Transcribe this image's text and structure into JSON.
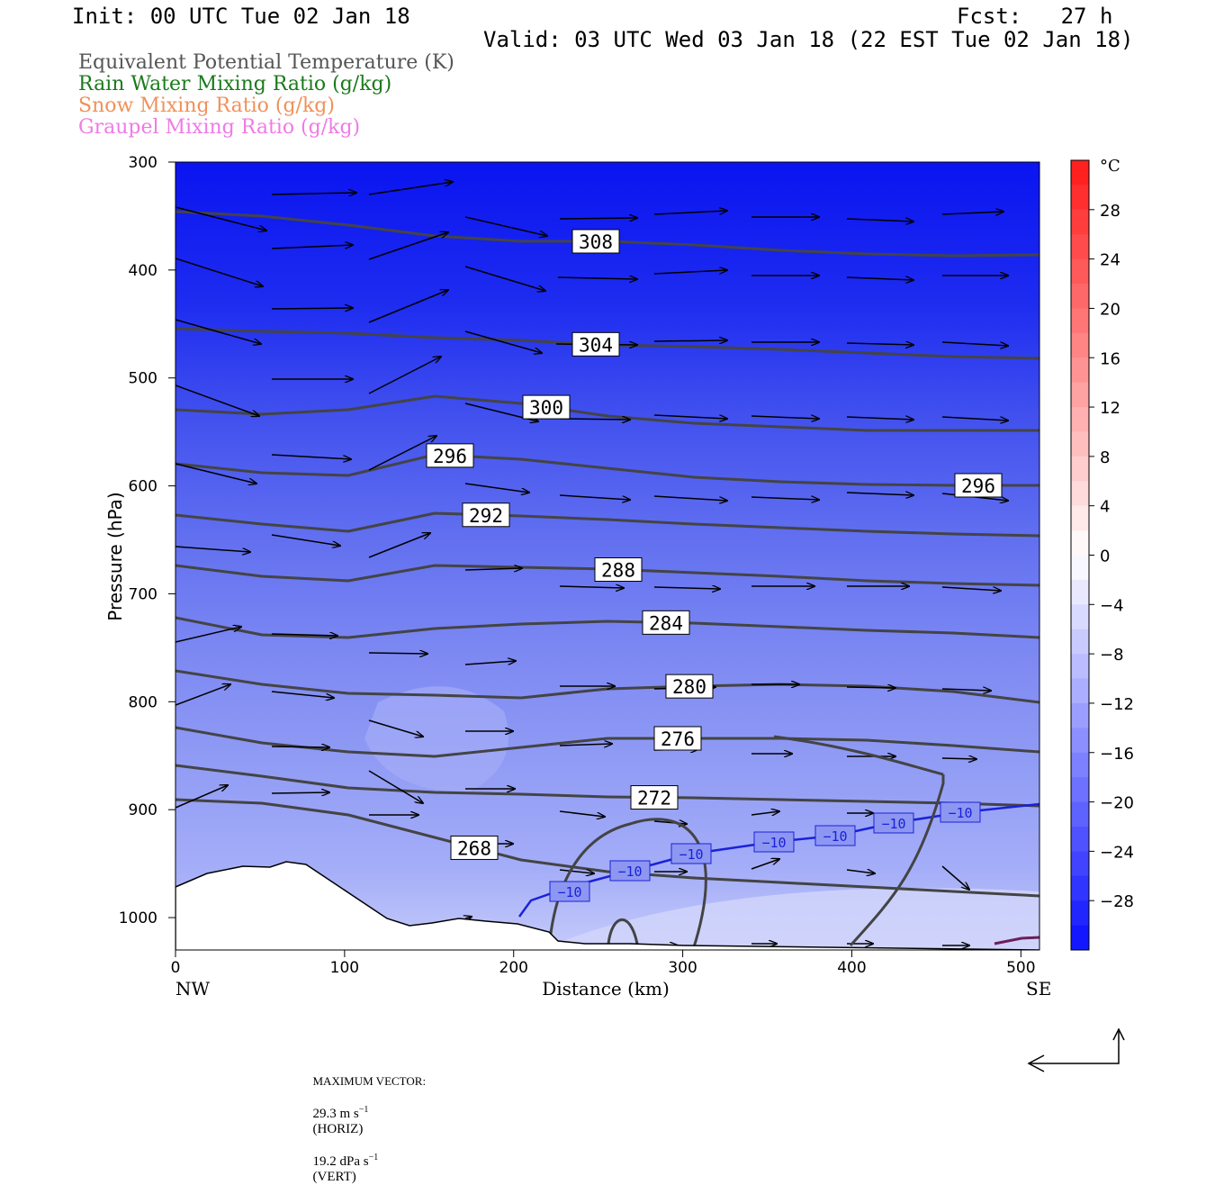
{
  "header": {
    "init": "Init: 00 UTC Tue 02 Jan 18",
    "fcst": "Fcst:   27 h",
    "valid": "Valid: 03 UTC Wed 03 Jan 18 (22 EST Tue 02 Jan 18)"
  },
  "legend": [
    {
      "label": "Equivalent Potential Temperature (K)",
      "color": "#555555"
    },
    {
      "label": "Rain Water Mixing Ratio (g/kg)",
      "color": "#1a7a1a"
    },
    {
      "label": "Snow Mixing Ratio (g/kg)",
      "color": "#f0915a"
    },
    {
      "label": "Graupel Mixing Ratio (g/kg)",
      "color": "#f07ae6"
    }
  ],
  "chart_data": {
    "type": "cross-section",
    "ylabel": "Pressure (hPa)",
    "xlabel": "Distance (km)",
    "x_left_label": "NW",
    "x_right_label": "SE",
    "xlim": [
      0,
      511
    ],
    "ylim": [
      1030,
      300
    ],
    "yticks": [
      300,
      400,
      500,
      600,
      700,
      800,
      900,
      1000
    ],
    "xticks": [
      0,
      100,
      200,
      300,
      400,
      500
    ],
    "colorbar": {
      "unit": "°C",
      "ticks": [
        28,
        24,
        20,
        16,
        12,
        8,
        4,
        0,
        -4,
        -8,
        -12,
        -16,
        -20,
        -24,
        -28
      ],
      "range": [
        -32,
        32
      ]
    },
    "theta_e_contours": [
      {
        "value": 308,
        "label": "308"
      },
      {
        "value": 304,
        "label": "304"
      },
      {
        "value": 300,
        "label": "300"
      },
      {
        "value": 296,
        "label": "296"
      },
      {
        "value": 292,
        "label": "292"
      },
      {
        "value": 288,
        "label": "288"
      },
      {
        "value": 284,
        "label": "284"
      },
      {
        "value": 280,
        "label": "280"
      },
      {
        "value": 276,
        "label": "276"
      },
      {
        "value": 272,
        "label": "272"
      },
      {
        "value": 268,
        "label": "268"
      }
    ],
    "temperature_contour": {
      "value": -10,
      "label": "−10"
    },
    "max_vector": {
      "label": "MAXIMUM VECTOR:",
      "horiz": "29.3 m s",
      "horiz_unit": "(HORIZ)",
      "vert": "19.2 dPa s",
      "vert_unit": "(VERT)",
      "exp": "−1"
    }
  }
}
